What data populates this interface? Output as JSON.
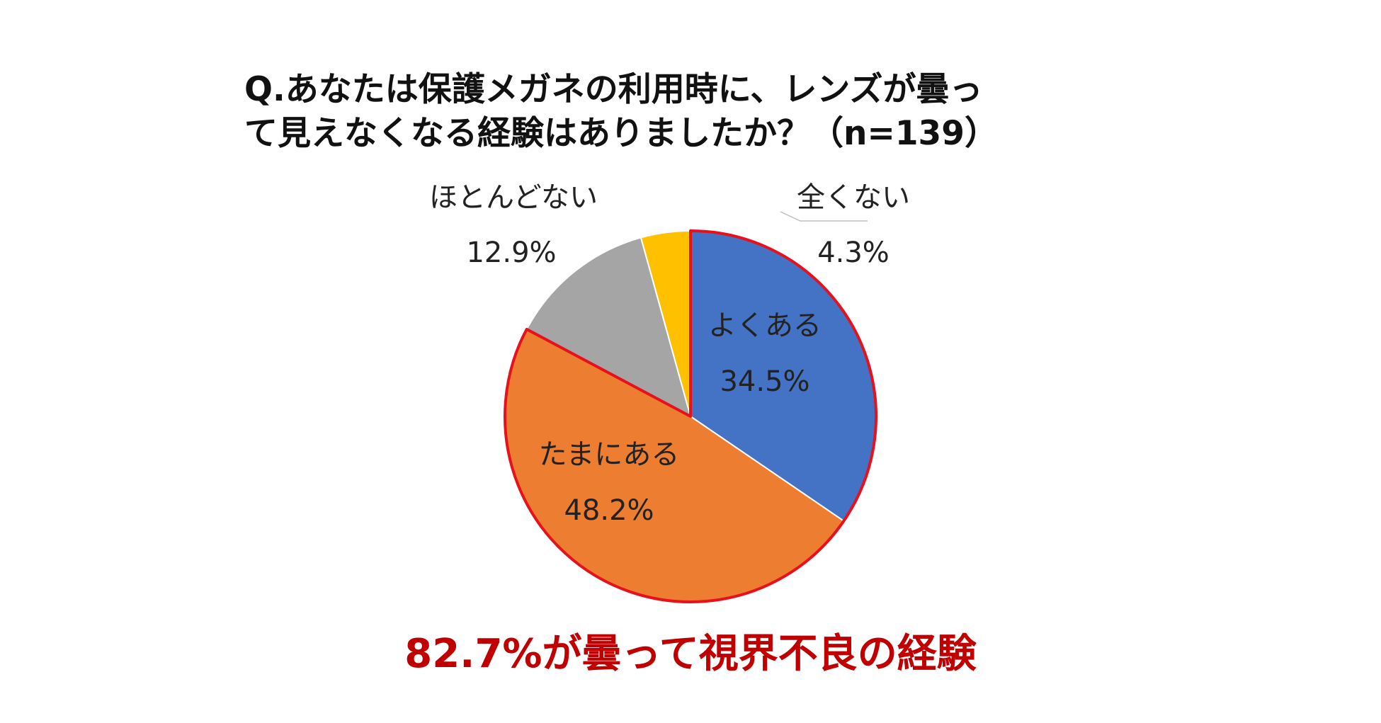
{
  "question": {
    "line1": "Q.あなたは保護メガネの利用時に、レンズが曇っ",
    "line2": "て見えなくなる経験はありましたか？（n=139）"
  },
  "summary": "82.7%が曇って視界不良の経験",
  "colors": {
    "summary": "#c00000",
    "highlight_outline": "#e8101a",
    "slice_border": "#ffffff"
  },
  "chart_data": {
    "type": "pie",
    "start": "12 o'clock, clockwise",
    "slices": [
      {
        "label": "よくある",
        "value": 34.5,
        "display": "34.5%",
        "color": "#4472c4",
        "highlight": true
      },
      {
        "label": "たまにある",
        "value": 48.2,
        "display": "48.2%",
        "color": "#ed7d31",
        "highlight": true
      },
      {
        "label": "ほとんどない",
        "value": 12.9,
        "display": "12.9%",
        "color": "#a5a5a5",
        "highlight": false
      },
      {
        "label": "全くない",
        "value": 4.3,
        "display": "4.3%",
        "color": "#ffc000",
        "highlight": false
      }
    ]
  }
}
